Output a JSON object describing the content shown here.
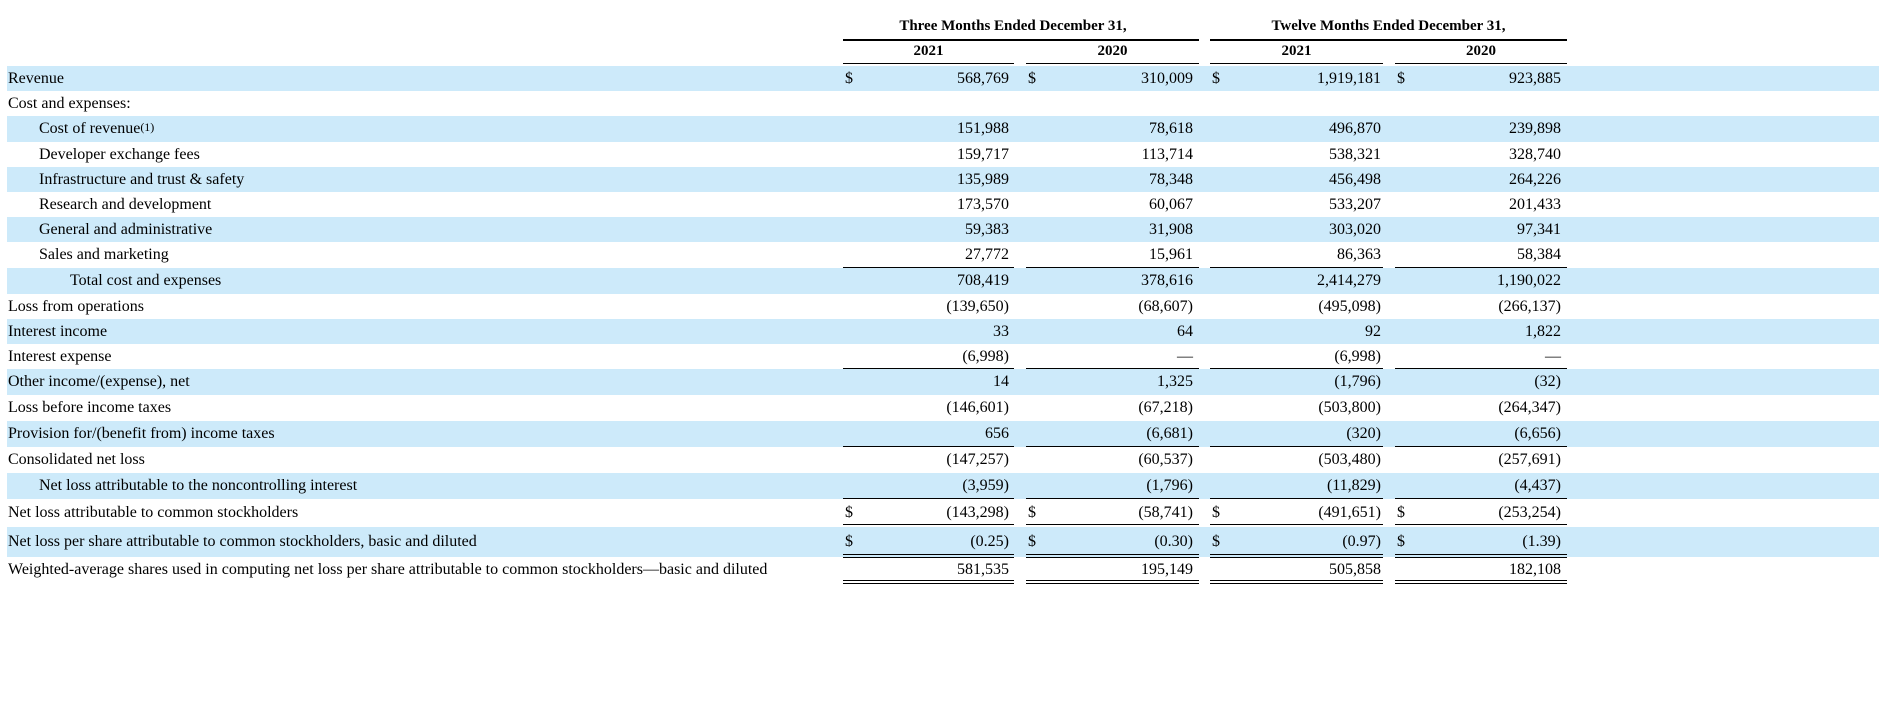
{
  "header": {
    "group1": "Three Months Ended December 31,",
    "group2": "Twelve Months Ended December 31,",
    "years": [
      "2021",
      "2020",
      "2021",
      "2020"
    ]
  },
  "currency_symbol": "$",
  "rows": [
    {
      "label": "Revenue",
      "values": [
        "568,769",
        "310,009",
        "1,919,181",
        "923,885"
      ],
      "dollar": true
    },
    {
      "label": "Cost and expenses:",
      "values": [
        "",
        "",
        "",
        ""
      ]
    },
    {
      "label": "Cost of revenue",
      "footnote": "(1)",
      "values": [
        "151,988",
        "78,618",
        "496,870",
        "239,898"
      ]
    },
    {
      "label": "Developer exchange fees",
      "values": [
        "159,717",
        "113,714",
        "538,321",
        "328,740"
      ]
    },
    {
      "label": "Infrastructure and trust & safety",
      "values": [
        "135,989",
        "78,348",
        "456,498",
        "264,226"
      ]
    },
    {
      "label": "Research and development",
      "values": [
        "173,570",
        "60,067",
        "533,207",
        "201,433"
      ]
    },
    {
      "label": "General and administrative",
      "values": [
        "59,383",
        "31,908",
        "303,020",
        "97,341"
      ]
    },
    {
      "label": "Sales and marketing",
      "values": [
        "27,772",
        "15,961",
        "86,363",
        "58,384"
      ]
    },
    {
      "label": "Total cost and expenses",
      "values": [
        "708,419",
        "378,616",
        "2,414,279",
        "1,190,022"
      ]
    },
    {
      "label": "Loss from operations",
      "values": [
        "(139,650)",
        "(68,607)",
        "(495,098)",
        "(266,137)"
      ]
    },
    {
      "label": "Interest income",
      "values": [
        "33",
        "64",
        "92",
        "1,822"
      ]
    },
    {
      "label": "Interest expense",
      "values": [
        "(6,998)",
        "—",
        "(6,998)",
        "—"
      ]
    },
    {
      "label": "Other income/(expense), net",
      "values": [
        "14",
        "1,325",
        "(1,796)",
        "(32)"
      ]
    },
    {
      "label": "Loss before income taxes",
      "values": [
        "(146,601)",
        "(67,218)",
        "(503,800)",
        "(264,347)"
      ]
    },
    {
      "label": "Provision for/(benefit from) income taxes",
      "values": [
        "656",
        "(6,681)",
        "(320)",
        "(6,656)"
      ]
    },
    {
      "label": "Consolidated net loss",
      "values": [
        "(147,257)",
        "(60,537)",
        "(503,480)",
        "(257,691)"
      ]
    },
    {
      "label": "Net loss attributable to the noncontrolling interest",
      "values": [
        "(3,959)",
        "(1,796)",
        "(11,829)",
        "(4,437)"
      ]
    },
    {
      "label": "Net loss attributable to common stockholders",
      "values": [
        "(143,298)",
        "(58,741)",
        "(491,651)",
        "(253,254)"
      ],
      "dollar": true
    },
    {
      "label": "Net loss per share attributable to common stockholders, basic and diluted",
      "values": [
        "(0.25)",
        "(0.30)",
        "(0.97)",
        "(1.39)"
      ],
      "dollar": true
    },
    {
      "label": "Weighted-average shares used in computing net loss per share attributable to common stockholders—basic and diluted",
      "values": [
        "581,535",
        "195,149",
        "505,858",
        "182,108"
      ]
    }
  ]
}
